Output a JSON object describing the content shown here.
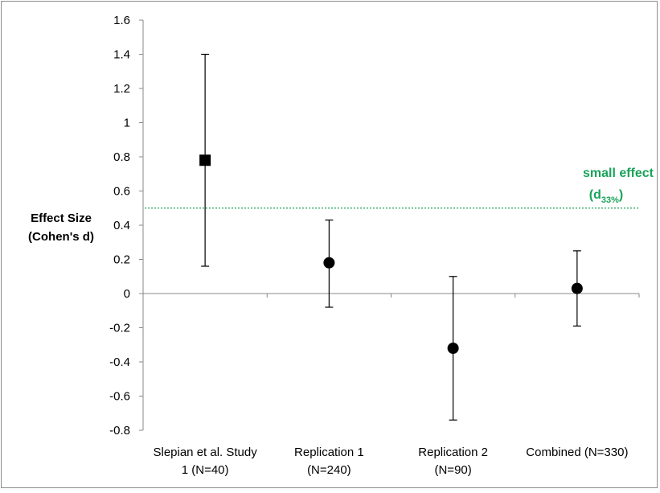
{
  "chart_data": {
    "type": "scatter",
    "ylabel_lines": [
      "Effect Size",
      "(Cohen's d)"
    ],
    "ylim": [
      -0.8,
      1.6
    ],
    "yticks": [
      "1.6",
      "1.4",
      "1.2",
      "1",
      "0.8",
      "0.6",
      "0.4",
      "0.2",
      "0",
      "-0.2",
      "-0.4",
      "-0.6",
      "-0.8"
    ],
    "categories": [
      [
        "Slepian et al. Study",
        "1 (N=40)"
      ],
      [
        "Replication 1",
        "(N=240)"
      ],
      [
        "Replication 2",
        "(N=90)"
      ],
      [
        "Combined (N=330)"
      ]
    ],
    "points": [
      {
        "value": 0.78,
        "lower": 0.16,
        "upper": 1.4,
        "marker": "square"
      },
      {
        "value": 0.18,
        "lower": -0.08,
        "upper": 0.43,
        "marker": "circle"
      },
      {
        "value": -0.32,
        "lower": -0.74,
        "upper": 0.1,
        "marker": "circle"
      },
      {
        "value": 0.03,
        "lower": -0.19,
        "upper": 0.25,
        "marker": "circle"
      }
    ],
    "reference_line": {
      "value": 0.5,
      "label": "small effect",
      "sublabel_main": "(d",
      "sublabel_sub": "33%",
      "sublabel_end": ")",
      "color": "#1aa35a"
    },
    "grid": false
  }
}
